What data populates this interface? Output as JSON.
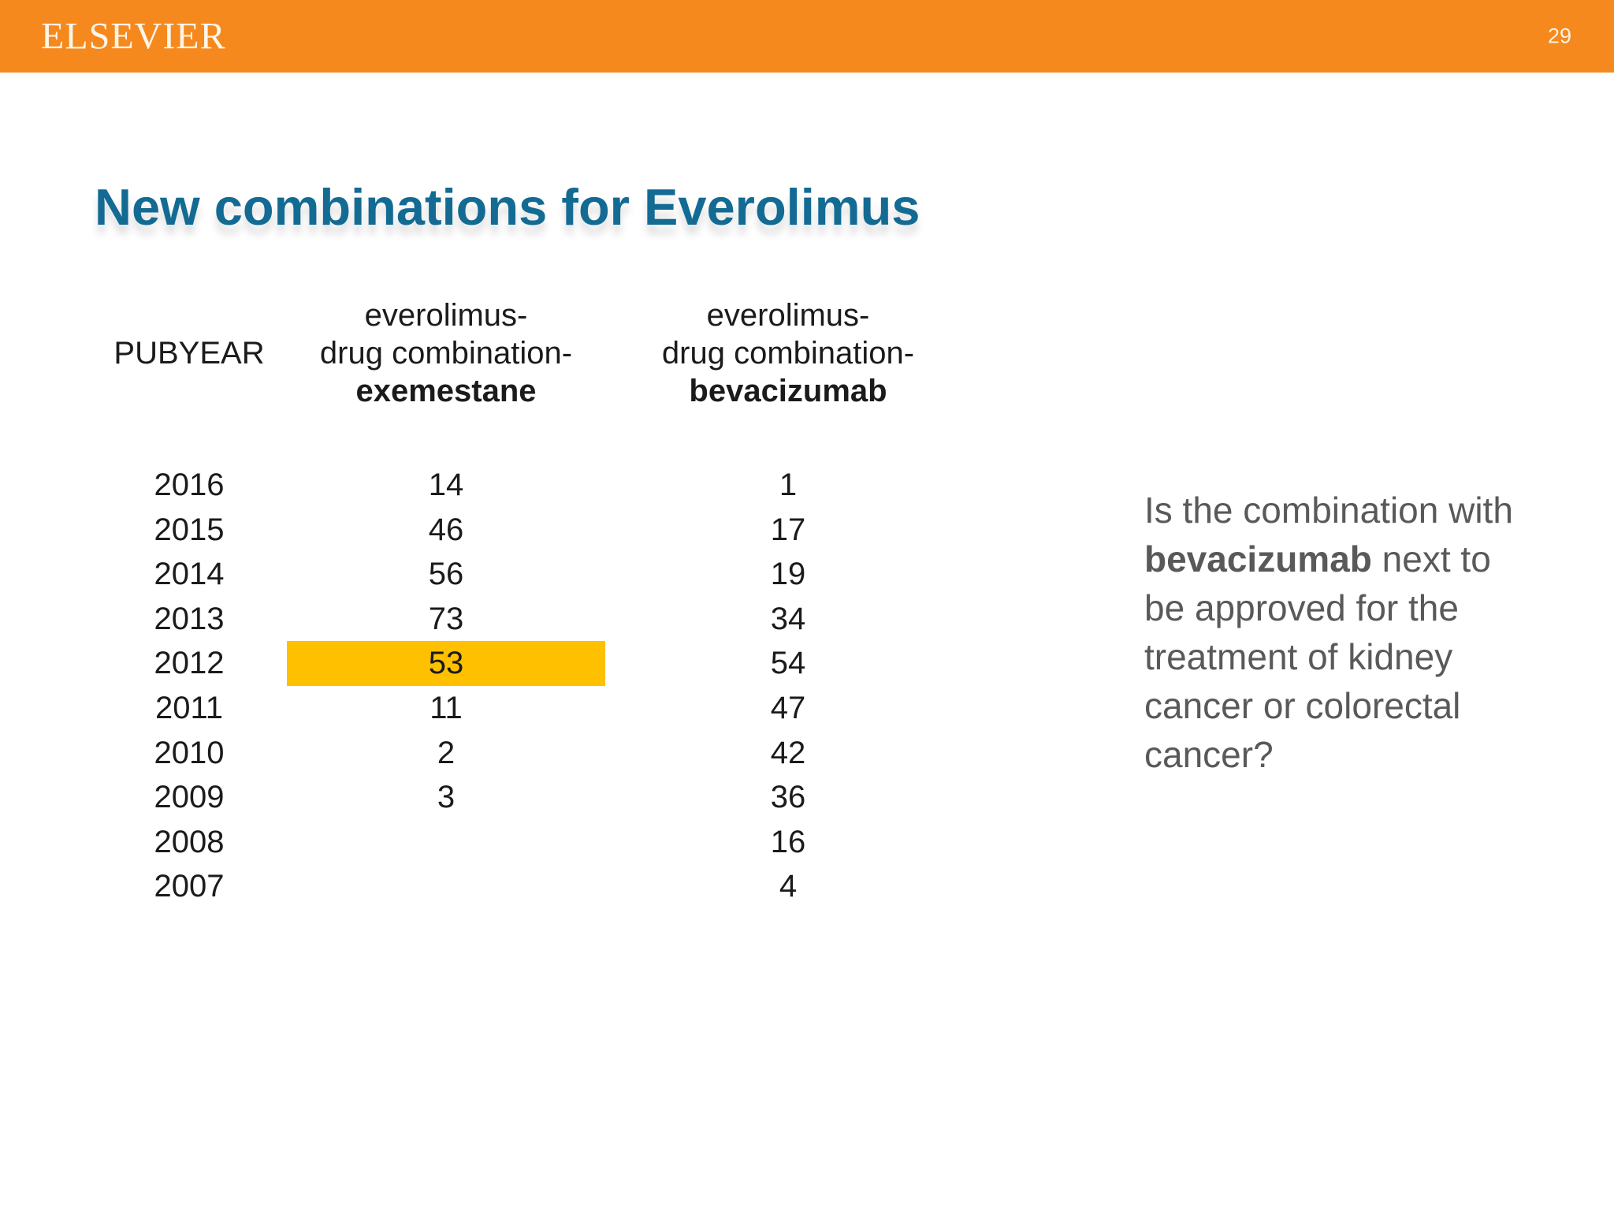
{
  "header": {
    "logo": "ELSEVIER",
    "page_number": "29",
    "bar_color": "#F6891E"
  },
  "title": {
    "text": "New combinations for Everolimus",
    "color": "#136B93"
  },
  "table": {
    "col_year": {
      "header": "PUBYEAR"
    },
    "col_exemestane": {
      "header_lines": [
        "everolimus-",
        "drug combination-",
        "exemestane"
      ]
    },
    "col_bevacizumab": {
      "header_lines": [
        "everolimus-",
        "drug combination-",
        "bevacizumab"
      ]
    },
    "highlight_color": "#FFC000",
    "rows": [
      {
        "year": "2016",
        "exemestane": "14",
        "bevacizumab": "1"
      },
      {
        "year": "2015",
        "exemestane": "46",
        "bevacizumab": "17"
      },
      {
        "year": "2014",
        "exemestane": "56",
        "bevacizumab": "19"
      },
      {
        "year": "2013",
        "exemestane": "73",
        "bevacizumab": "34"
      },
      {
        "year": "2012",
        "exemestane": "53",
        "bevacizumab": "54",
        "highlight": "exemestane"
      },
      {
        "year": "2011",
        "exemestane": "11",
        "bevacizumab": "47"
      },
      {
        "year": "2010",
        "exemestane": "2",
        "bevacizumab": "42"
      },
      {
        "year": "2009",
        "exemestane": "3",
        "bevacizumab": "36"
      },
      {
        "year": "2008",
        "exemestane": "",
        "bevacizumab": "16"
      },
      {
        "year": "2007",
        "exemestane": "",
        "bevacizumab": "4"
      }
    ]
  },
  "question": {
    "color": "#595959",
    "segments": [
      {
        "text": "Is the combination with "
      },
      {
        "text": "bevacizumab",
        "bold": true
      },
      {
        "text": " next to be approved for the treatment of kidney cancer or colorectal cancer?"
      }
    ]
  }
}
